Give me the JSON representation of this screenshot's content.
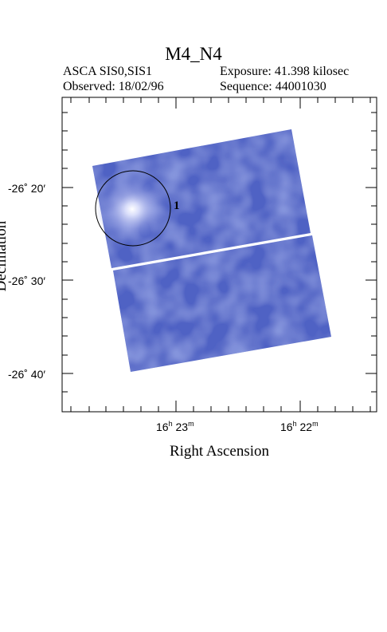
{
  "header": {
    "title": "M4_N4",
    "instrument": "ASCA SIS0,SIS1",
    "observed": "Observed: 18/02/96",
    "exposure": "Exposure: 41.398 kilosec",
    "sequence": "Sequence: 44001030"
  },
  "axes": {
    "x_title": "Right Ascension",
    "y_title": "Declination",
    "x_ticks": [
      {
        "h": "16",
        "m": "23"
      },
      {
        "h": "16",
        "m": "22"
      }
    ],
    "y_ticks": [
      "-26˚ 20′",
      "-26˚ 30′",
      "-26˚ 40′"
    ]
  },
  "source": {
    "label": "1"
  },
  "colors": {
    "image_blue": "#4f62c4",
    "image_light": "#8b95dc",
    "source_glow": "#ffffff"
  }
}
